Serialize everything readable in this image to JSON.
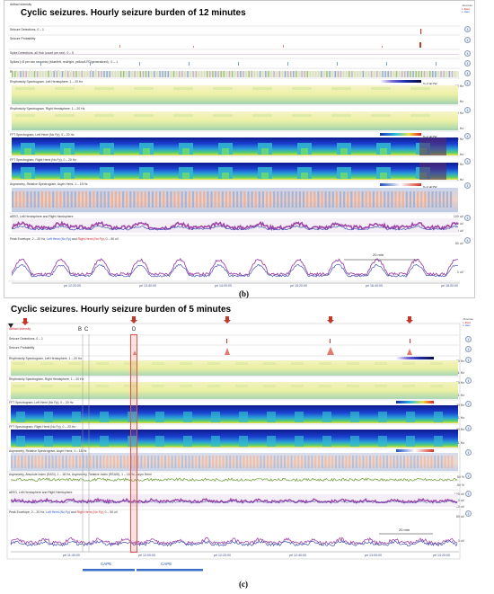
{
  "panel_b": {
    "title": "Cyclic seizures. Hourly seizure burden of  12 minutes",
    "letter": "(b)",
    "tracks": [
      {
        "label": "Artifact Intensity"
      },
      {
        "label": "Seizure Detections, 0 – 1"
      },
      {
        "label": "Seizure Probability"
      },
      {
        "label": "Spike Detections, all Hub (count per sec), 0 – 5"
      },
      {
        "label": "Spikes (>5 per sec seconds) (blue/left, red/right, yellow/LPD/generalized) , 0 – 1"
      },
      {
        "label": "Rhythmicity Index (seizure) (blue/left, red/right, green/gen), 0 – 1"
      },
      {
        "label": "Rhythmicity Spectrogram, Left Hemisphere, 1 – 20 Hz"
      },
      {
        "label": "Rhythmicity Spectrogram, Right Hemisphere, 1 – 20 Hz"
      },
      {
        "label": "FFT Spectrogram, Left Hemi (No Fp), 0 – 20 Hz"
      },
      {
        "label": "FFT Spectrogram, Right Hemi (No Fp), 0 – 20 Hz"
      },
      {
        "label": "Asymmetry, Relative Spectrogram, Asym Hemi, 1 – 18 Hz"
      },
      {
        "label": "aEEG, Left Hemisphere and Right Hemisphere"
      },
      {
        "label_pre": "Peak Envelope, 2 – 20 Hz, ",
        "label_left": "Left Hemi (No Fp)",
        "label_mid": " and ",
        "label_right": "Right Hemi (No Fp)",
        "label_post": ", 0 – 50 uV"
      }
    ],
    "legend_top": [
      "Absolute",
      "L Rwd",
      "L Hem"
    ],
    "y_ticks": [
      "20 Hz",
      "1 Hz",
      "20 Hz",
      "1 Hz",
      "20 Hz",
      "1 Hz",
      "20 Hz",
      "1 Hz",
      "100 uV",
      "50 uV",
      "10 uV",
      "50 uV",
      "0 uV"
    ],
    "time_ticks": [
      "pri 12:20:00",
      "pri 13:40:00",
      "pri 14:00:00",
      "pri 15:20:00",
      "pri 16:40:00",
      "pri 18:00:00"
    ],
    "scalebar": "20 min",
    "colorbar_labels": [
      "% of all PW",
      "% of all PW",
      "% of all PW"
    ]
  },
  "panel_c": {
    "title": "Cyclic seizures. Hourly seizure burden of  5 minutes",
    "letter": "(c)",
    "mark_labels": [
      "B",
      "C",
      "D"
    ],
    "tracks": [
      {
        "label": "Artifact Intensity"
      },
      {
        "label": "Seizure Detections, 0 – 1"
      },
      {
        "label": "Seizure Probability"
      },
      {
        "label": "Rhythmicity Spectrogram, Left Hemisphere, 1 – 20 Hz"
      },
      {
        "label": "Rhythmicity Spectrogram, Right Hemisphere, 1 – 20 Hz"
      },
      {
        "label": "FFT Spectrogram, Left Hemi (No Fp), 0 – 20 Hz"
      },
      {
        "label": "FFT Spectrogram, Right Hemi (No Fp), 0 – 20 Hz"
      },
      {
        "label": "Asymmetry, Relative Spectrogram, Asym Hemi, 1 – 18 Hz"
      },
      {
        "label": "Asymmetry, Absolute Index (EASI), 1 – 18 Hz, Asymmetry, Relative Index (REASI), 1 – 18 Hz, Asym Hemi"
      },
      {
        "label": "aEEG, Left Hemisphere and Right Hemisphere"
      },
      {
        "label_pre": "Peak Envelope, 2 – 20 Hz, ",
        "label_left": "Left Hemi (No Fp)",
        "label_mid": " and ",
        "label_right": "Right Hemi (No Fp)",
        "label_post": ", 0 – 50 uV"
      }
    ],
    "legend_top": [
      "Absolute",
      "L Rwd",
      "L Hem"
    ],
    "y_ticks": [
      "20 Hz",
      "1 Hz",
      "20 Hz",
      "1 Hz",
      "20 Hz",
      "1 Hz",
      "20 Hz",
      "1 Hz",
      "50 %",
      "-50 %",
      "100 uV",
      "50 uV",
      "10 uV",
      "50 uV",
      "0 uV"
    ],
    "time_ticks": [
      "pri 11:40:00",
      "pri 12:00:00",
      "pri 12:20:00",
      "pri 12:40:00",
      "pri 13:00:00",
      "pri 13:20:00"
    ],
    "scalebar": "20 min",
    "cape_labels": [
      "CAPE",
      "CAPE"
    ]
  },
  "colors": {
    "spectro_blue": "#1a2fb8",
    "spectro_yellow": "#f3f0a0",
    "purple_trace": "#a046a8",
    "blue_trace": "#2a3fb0",
    "red_arrow": "#c0392b",
    "cape_bar": "#3a6ec8"
  }
}
